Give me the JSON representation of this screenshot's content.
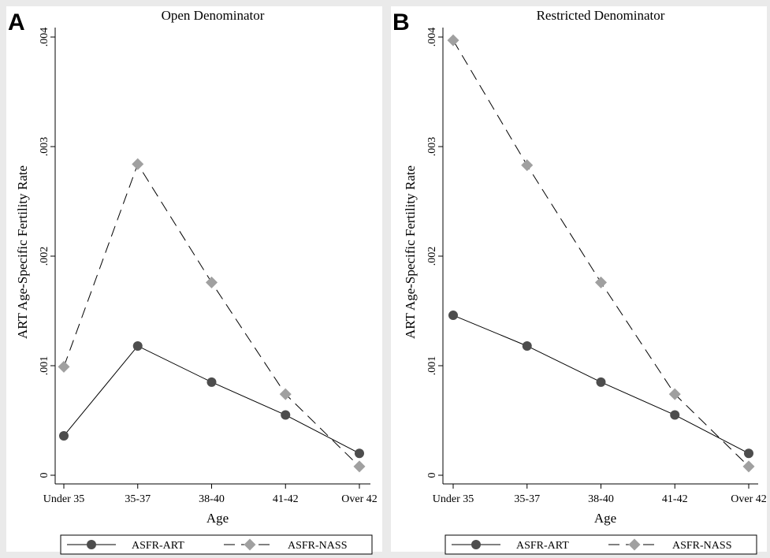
{
  "chart_data": [
    {
      "panel_letter": "A",
      "type": "line",
      "title": "Open Denominator",
      "xlabel": "Age",
      "ylabel": "ART Age-Specific Fertility Rate",
      "categories": [
        "Under 35",
        "35-37",
        "38-40",
        "41-42",
        "Over 42"
      ],
      "ylim": [
        0,
        0.004
      ],
      "yticks": [
        0,
        0.001,
        0.002,
        0.003,
        0.004
      ],
      "ytick_labels": [
        "0",
        ".001",
        ".002",
        ".003",
        ".004"
      ],
      "grid": false,
      "legend_position": "bottom",
      "series": [
        {
          "name": "ASFR-ART",
          "color": "#4d4d4d",
          "marker": "circle",
          "line": "solid",
          "values": [
            0.00036,
            0.00118,
            0.00085,
            0.00055,
            0.0002
          ]
        },
        {
          "name": "ASFR-NASS",
          "color": "#a0a0a0",
          "marker": "diamond",
          "line": "dashed",
          "values": [
            0.00099,
            0.00284,
            0.00176,
            0.00074,
            8e-05
          ]
        }
      ]
    },
    {
      "panel_letter": "B",
      "type": "line",
      "title": "Restricted Denominator",
      "xlabel": "Age",
      "ylabel": "ART Age-Specific Fertility Rate",
      "categories": [
        "Under 35",
        "35-37",
        "38-40",
        "41-42",
        "Over 42"
      ],
      "ylim": [
        0,
        0.004
      ],
      "yticks": [
        0,
        0.001,
        0.002,
        0.003,
        0.004
      ],
      "ytick_labels": [
        "0",
        ".001",
        ".002",
        ".003",
        ".004"
      ],
      "grid": false,
      "legend_position": "bottom",
      "series": [
        {
          "name": "ASFR-ART",
          "color": "#4d4d4d",
          "marker": "circle",
          "line": "solid",
          "values": [
            0.00146,
            0.00118,
            0.00085,
            0.00055,
            0.0002
          ]
        },
        {
          "name": "ASFR-NASS",
          "color": "#a0a0a0",
          "marker": "diamond",
          "line": "dashed",
          "values": [
            0.00397,
            0.00283,
            0.00176,
            0.00074,
            8e-05
          ]
        }
      ]
    }
  ]
}
